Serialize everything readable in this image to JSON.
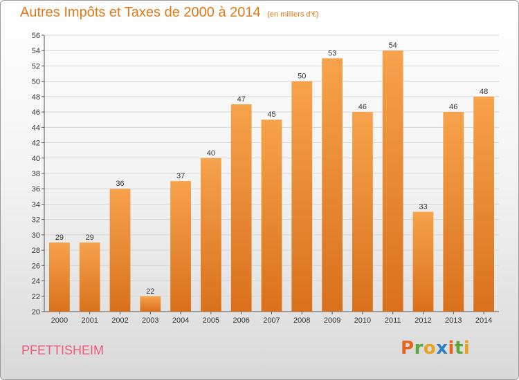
{
  "header": {
    "title": "Autres Impôts et Taxes de 2000 à 2014",
    "unit": "(en milliers d'€)"
  },
  "footer": {
    "commune": "PFETTISHEIM",
    "logo_letters": [
      "P",
      "r",
      "o",
      "x",
      "i",
      "t",
      "i"
    ],
    "logo_colors": [
      "#e8641c",
      "#5aa83c",
      "#e8a21c",
      "#2f7fc6",
      "#e8641c",
      "#5aa83c",
      "#e8a21c"
    ]
  },
  "chart_data": {
    "type": "bar",
    "categories": [
      "2000",
      "2001",
      "2002",
      "2003",
      "2004",
      "2005",
      "2006",
      "2007",
      "2008",
      "2009",
      "2010",
      "2011",
      "2012",
      "2013",
      "2014"
    ],
    "values": [
      29,
      29,
      36,
      22,
      37,
      40,
      47,
      45,
      50,
      53,
      46,
      54,
      33,
      46,
      48
    ],
    "ylim": [
      20,
      56
    ],
    "yticks": [
      20,
      22,
      24,
      26,
      28,
      30,
      32,
      34,
      36,
      38,
      40,
      42,
      44,
      46,
      48,
      50,
      52,
      54,
      56
    ],
    "grid": true,
    "bar_color_top": "#f7a24c",
    "bar_color_bottom": "#d9711c",
    "title": "Autres Impôts et Taxes de 2000 à 2014",
    "xlabel": "",
    "ylabel": ""
  }
}
